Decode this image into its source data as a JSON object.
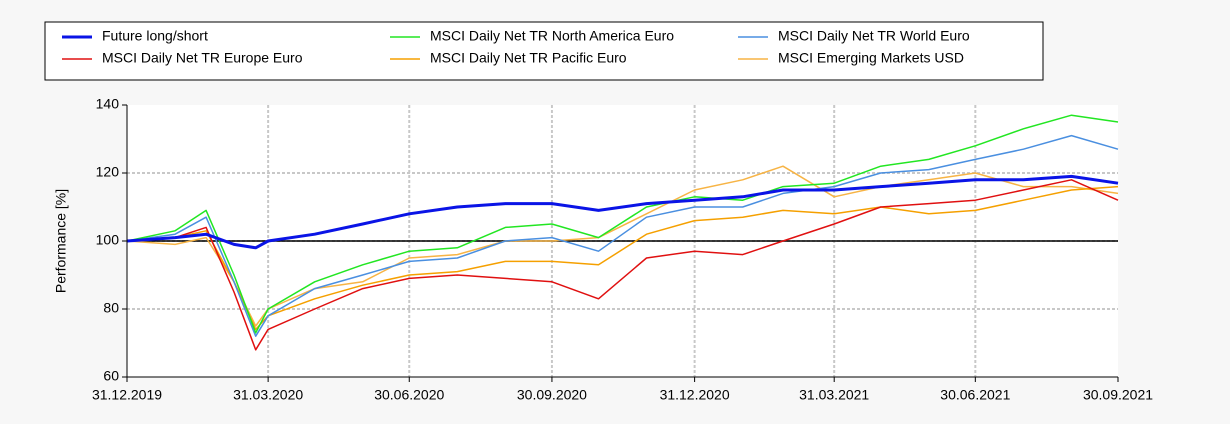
{
  "chart_data": {
    "type": "line",
    "y_label": "Performance [%]",
    "x": [
      "31.12.2019",
      "31.01.2020",
      "20.02.2020",
      "09.03.2020",
      "23.03.2020",
      "31.03.2020",
      "30.04.2020",
      "31.05.2020",
      "30.06.2020",
      "31.07.2020",
      "31.08.2020",
      "30.09.2020",
      "30.10.2020",
      "30.11.2020",
      "31.12.2020",
      "31.01.2021",
      "26.02.2021",
      "31.03.2021",
      "30.04.2021",
      "31.05.2021",
      "30.06.2021",
      "31.07.2021",
      "31.08.2021",
      "30.09.2021"
    ],
    "series": [
      {
        "name": "Future long/short",
        "color": "#0a14e6",
        "width": 3,
        "values": [
          100,
          101,
          102,
          99,
          98,
          100,
          102,
          105,
          108,
          110,
          111,
          111,
          109,
          111,
          112,
          113,
          115,
          115,
          116,
          117,
          118,
          118,
          119,
          117
        ]
      },
      {
        "name": "MSCI Daily Net TR North America Euro",
        "color": "#22e622",
        "width": 1.5,
        "values": [
          100,
          103,
          109,
          90,
          73,
          80,
          88,
          93,
          97,
          98,
          104,
          105,
          101,
          110,
          113,
          112,
          116,
          117,
          122,
          124,
          128,
          133,
          137,
          135
        ]
      },
      {
        "name": "MSCI Daily Net TR World Euro",
        "color": "#4a8fe0",
        "width": 1.5,
        "values": [
          100,
          102,
          107,
          88,
          72,
          78,
          86,
          90,
          94,
          95,
          100,
          101,
          97,
          107,
          110,
          110,
          114,
          116,
          120,
          121,
          124,
          127,
          131,
          127
        ]
      },
      {
        "name": "MSCI Daily Net TR Europe Euro",
        "color": "#e01010",
        "width": 1.5,
        "values": [
          100,
          101,
          104,
          85,
          68,
          74,
          80,
          86,
          89,
          90,
          89,
          88,
          83,
          95,
          97,
          96,
          100,
          105,
          110,
          111,
          112,
          115,
          118,
          112
        ]
      },
      {
        "name": "MSCI Daily Net TR Pacific Euro",
        "color": "#f5a000",
        "width": 1.5,
        "values": [
          100,
          101,
          103,
          88,
          74,
          78,
          83,
          87,
          90,
          91,
          94,
          94,
          93,
          102,
          106,
          107,
          109,
          108,
          110,
          108,
          109,
          112,
          115,
          116
        ]
      },
      {
        "name": "MSCI Emerging Markets USD",
        "color": "#f7b445",
        "width": 1.5,
        "values": [
          100,
          99,
          101,
          88,
          75,
          80,
          86,
          88,
          95,
          96,
          100,
          100,
          101,
          108,
          115,
          118,
          122,
          113,
          116,
          118,
          120,
          116,
          116,
          114
        ]
      }
    ],
    "xlim": [
      "31.12.2019",
      "30.09.2021"
    ],
    "xticks": [
      "31.12.2019",
      "31.03.2020",
      "30.06.2020",
      "30.09.2020",
      "31.12.2020",
      "31.03.2021",
      "30.06.2021",
      "30.09.2021"
    ],
    "ylim": [
      60,
      140
    ],
    "yticks": [
      60,
      80,
      100,
      120,
      140
    ],
    "reference_line": 100,
    "grid": true
  }
}
